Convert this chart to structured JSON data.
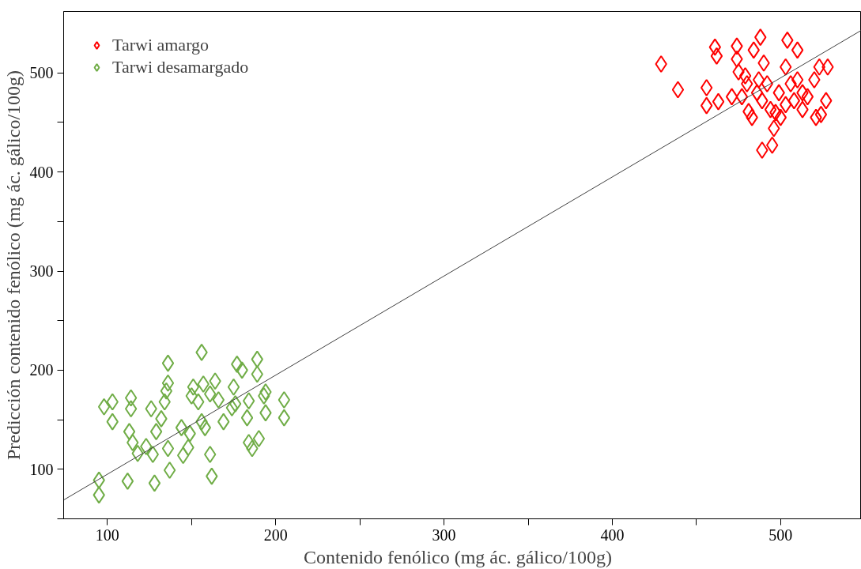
{
  "chart_data": {
    "type": "scatter",
    "xlabel": "Contenido  fenólico  (mg ác. gálico/100g)",
    "ylabel": "Predicción contenido fenólico (mg ác. gálico/100g)",
    "xlim": [
      74,
      548
    ],
    "ylim": [
      50,
      562
    ],
    "xticks": [
      100,
      {
        "value": 150,
        "label": null
      },
      200,
      {
        "value": 250,
        "label": null
      },
      300,
      {
        "value": 350,
        "label": null
      },
      400,
      {
        "value": 450,
        "label": null
      },
      500
    ],
    "yticks": [
      {
        "value": 50,
        "label": null
      },
      100,
      {
        "value": 150,
        "label": null
      },
      200,
      {
        "value": 250,
        "label": null
      },
      300,
      {
        "value": 350,
        "label": null
      },
      400,
      {
        "value": 450,
        "label": null
      },
      500
    ],
    "grid": false,
    "legend": "top left",
    "marker": "diamond",
    "series": [
      {
        "name": "Tarwi amargo",
        "color": "#ff0000",
        "x": [
          429,
          439,
          456,
          456,
          461,
          462,
          463,
          474,
          474,
          471,
          475,
          479,
          484,
          486,
          488,
          490,
          492,
          494,
          496,
          495,
          489,
          499,
          503,
          506,
          510,
          513,
          513,
          520,
          523,
          528,
          527,
          524,
          481,
          483,
          477,
          489,
          497,
          503,
          508,
          516,
          510,
          480,
          504,
          500,
          487,
          521
        ],
        "values": [
          509,
          483,
          485,
          467,
          526,
          517,
          471,
          527,
          514,
          476,
          501,
          497,
          523,
          480,
          536,
          510,
          489,
          463,
          444,
          427,
          422,
          480,
          506,
          489,
          523,
          480,
          463,
          493,
          506,
          506,
          472,
          458,
          461,
          455,
          476,
          472,
          460,
          468,
          472,
          476,
          493,
          489,
          533,
          455,
          493,
          455
        ]
      },
      {
        "name": "Tarwi desamargado",
        "color": "#70ad47",
        "x": [
          156,
          136,
          177,
          189,
          189,
          180,
          136,
          151,
          164,
          157,
          175,
          205,
          205,
          193,
          194,
          184,
          183,
          174,
          169,
          166,
          161,
          154,
          150,
          156,
          158,
          149,
          144,
          148,
          145,
          136,
          127,
          137,
          161,
          162,
          128,
          112,
          95,
          95,
          98,
          103,
          103,
          114,
          114,
          113,
          115,
          118,
          123,
          126,
          129,
          132,
          134,
          135,
          184,
          190,
          186,
          176,
          194
        ],
        "values": [
          218,
          207,
          206,
          211,
          196,
          200,
          187,
          183,
          189,
          186,
          183,
          170,
          152,
          174,
          157,
          169,
          152,
          162,
          148,
          170,
          176,
          168,
          174,
          148,
          142,
          136,
          142,
          122,
          114,
          121,
          115,
          99,
          115,
          93,
          86,
          88,
          89,
          74,
          163,
          168,
          148,
          172,
          161,
          138,
          127,
          116,
          123,
          161,
          138,
          151,
          168,
          179,
          127,
          131,
          121,
          166,
          178
        ]
      },
      {
        "type": "line",
        "color": "#404040",
        "x": [
          74,
          548
        ],
        "values": [
          69,
          543
        ],
        "line_style": "solid",
        "marker": "none"
      }
    ]
  }
}
